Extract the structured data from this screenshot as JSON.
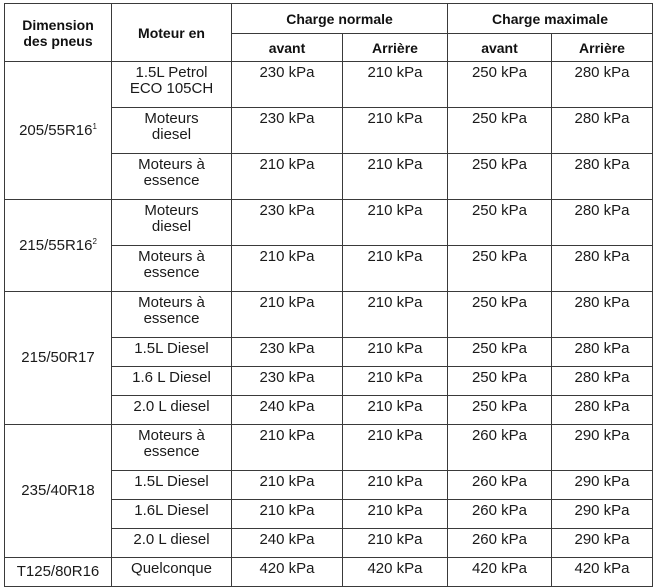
{
  "headers": {
    "dimension": "Dimension\ndes pneus",
    "moteur": "Moteur en",
    "charge_normale": "Charge normale",
    "charge_maximale": "Charge maximale",
    "avant": "avant",
    "arriere": "Arrière"
  },
  "groups": [
    {
      "dimension": "205/55R16",
      "note": "1",
      "rows": [
        {
          "moteur": "1.5L Petrol\nECO 105CH",
          "n_avant": "230 kPa",
          "n_arriere": "210 kPa",
          "m_avant": "250 kPa",
          "m_arriere": "280 kPa"
        },
        {
          "moteur": "Moteurs\ndiesel",
          "n_avant": "230 kPa",
          "n_arriere": "210 kPa",
          "m_avant": "250 kPa",
          "m_arriere": "280 kPa"
        },
        {
          "moteur": "Moteurs à\nessence",
          "n_avant": "210 kPa",
          "n_arriere": "210 kPa",
          "m_avant": "250 kPa",
          "m_arriere": "280 kPa"
        }
      ]
    },
    {
      "dimension": "215/55R16",
      "note": "2",
      "rows": [
        {
          "moteur": "Moteurs\ndiesel",
          "n_avant": "230 kPa",
          "n_arriere": "210 kPa",
          "m_avant": "250 kPa",
          "m_arriere": "280 kPa"
        },
        {
          "moteur": "Moteurs à\nessence",
          "n_avant": "210 kPa",
          "n_arriere": "210 kPa",
          "m_avant": "250 kPa",
          "m_arriere": "280 kPa"
        }
      ]
    },
    {
      "dimension": "215/50R17",
      "note": "",
      "rows": [
        {
          "moteur": "Moteurs à\nessence",
          "n_avant": "210 kPa",
          "n_arriere": "210 kPa",
          "m_avant": "250 kPa",
          "m_arriere": "280 kPa"
        },
        {
          "moteur": "1.5L Diesel",
          "n_avant": "230 kPa",
          "n_arriere": "210 kPa",
          "m_avant": "250 kPa",
          "m_arriere": "280 kPa"
        },
        {
          "moteur": "1.6 L Diesel",
          "n_avant": "230 kPa",
          "n_arriere": "210 kPa",
          "m_avant": "250 kPa",
          "m_arriere": "280 kPa"
        },
        {
          "moteur": "2.0 L diesel",
          "n_avant": "240 kPa",
          "n_arriere": "210 kPa",
          "m_avant": "250 kPa",
          "m_arriere": "280 kPa"
        }
      ]
    },
    {
      "dimension": "235/40R18",
      "note": "",
      "rows": [
        {
          "moteur": "Moteurs à\nessence",
          "n_avant": "210 kPa",
          "n_arriere": "210 kPa",
          "m_avant": "260 kPa",
          "m_arriere": "290 kPa"
        },
        {
          "moteur": "1.5L Diesel",
          "n_avant": "210 kPa",
          "n_arriere": "210 kPa",
          "m_avant": "260 kPa",
          "m_arriere": "290 kPa"
        },
        {
          "moteur": "1.6L Diesel",
          "n_avant": "210 kPa",
          "n_arriere": "210 kPa",
          "m_avant": "260 kPa",
          "m_arriere": "290 kPa"
        },
        {
          "moteur": "2.0 L diesel",
          "n_avant": "240 kPa",
          "n_arriere": "210 kPa",
          "m_avant": "260 kPa",
          "m_arriere": "290 kPa"
        }
      ]
    },
    {
      "dimension": "T125/80R16",
      "note": "",
      "rows": [
        {
          "moteur": "Quelconque",
          "n_avant": "420 kPa",
          "n_arriere": "420 kPa",
          "m_avant": "420 kPa",
          "m_arriere": "420 kPa"
        }
      ]
    }
  ]
}
